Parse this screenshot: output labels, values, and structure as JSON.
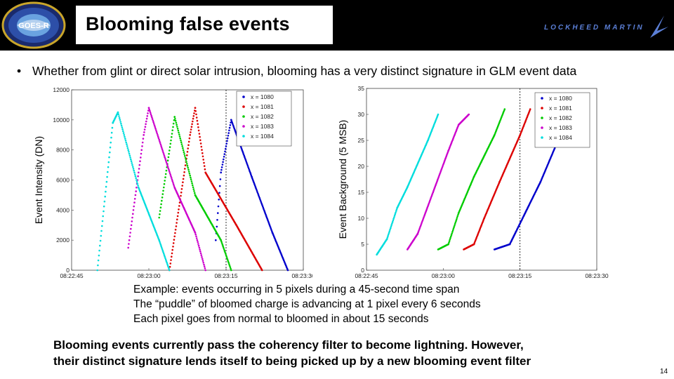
{
  "header": {
    "title": "Blooming false events",
    "left_logo_text": "GOES-R",
    "right_logo_text": "LOCKHEED MARTIN"
  },
  "bullet": {
    "symbol": "•",
    "text": "Whether from glint or direct solar intrusion, blooming has a very distinct signature in GLM event data"
  },
  "caption": {
    "lines": [
      "Example: events occurring in 5 pixels during a 45-second time span",
      "The “puddle” of bloomed charge is advancing at 1 pixel every 6 seconds",
      "Each pixel goes from normal to bloomed in about 15 seconds"
    ]
  },
  "conclusion": {
    "lines": [
      "Blooming events currently pass the coherency filter to become lightning.  However,",
      "their distinct signature lends itself to being picked up by a new blooming event filter"
    ]
  },
  "page_number": "14",
  "chart_data": [
    {
      "type": "scatter",
      "ylabel": "Event Intensity (DN)",
      "xlabel": "",
      "ylim": [
        0,
        12000
      ],
      "xlim": [
        "08:22:45",
        "08:23:30"
      ],
      "y_ticks": [
        "12000",
        "10000",
        "8000",
        "6000",
        "4000",
        "2000",
        "0"
      ],
      "x_ticks": [
        "08:22:45",
        "08:23:00",
        "08:23:15",
        "08:23:30"
      ],
      "grid": false,
      "legend_position": "top-right",
      "series": [
        {
          "name": "x = 1080",
          "color": "#0000cc",
          "rise": [
            "08:23:12",
            "08:23:14"
          ],
          "peak": [
            "08:23:16",
            10000
          ],
          "end": [
            "08:23:27",
            0
          ],
          "points": [
            [
              "08:23:13",
              2000
            ],
            [
              "08:23:14",
              6500
            ],
            [
              "08:23:16",
              10000
            ],
            [
              "08:23:20",
              6200
            ],
            [
              "08:23:24",
              2500
            ],
            [
              "08:23:27",
              0
            ]
          ]
        },
        {
          "name": "x = 1081",
          "color": "#dd0000",
          "points": [
            [
              "08:23:04",
              0
            ],
            [
              "08:23:08",
              9000
            ],
            [
              "08:23:09",
              10800
            ],
            [
              "08:23:11",
              6500
            ],
            [
              "08:23:17",
              3000
            ],
            [
              "08:23:22",
              0
            ]
          ]
        },
        {
          "name": "x = 1082",
          "color": "#00cc00",
          "points": [
            [
              "08:23:02",
              3500
            ],
            [
              "08:23:05",
              10200
            ],
            [
              "08:23:09",
              5000
            ],
            [
              "08:23:14",
              2000
            ],
            [
              "08:23:16",
              0
            ]
          ]
        },
        {
          "name": "x = 1083",
          "color": "#cc00cc",
          "points": [
            [
              "08:22:56",
              1500
            ],
            [
              "08:22:59",
              9000
            ],
            [
              "08:23:00",
              10800
            ],
            [
              "08:23:05",
              5500
            ],
            [
              "08:23:09",
              2500
            ],
            [
              "08:23:11",
              0
            ]
          ]
        },
        {
          "name": "x = 1084",
          "color": "#00dddd",
          "points": [
            [
              "08:22:50",
              0
            ],
            [
              "08:22:53",
              9800
            ],
            [
              "08:22:54",
              10500
            ],
            [
              "08:22:58",
              5500
            ],
            [
              "08:23:02",
              2000
            ],
            [
              "08:23:04",
              0
            ]
          ]
        }
      ]
    },
    {
      "type": "scatter",
      "ylabel": "Event Background (5 MSB)",
      "xlabel": "",
      "ylim": [
        0,
        35
      ],
      "xlim": [
        "08:22:45",
        "08:23:30"
      ],
      "y_ticks": [
        "35",
        "30",
        "25",
        "20",
        "15",
        "10",
        "5",
        "0"
      ],
      "x_ticks": [
        "08:22:45",
        "08:23:00",
        "08:23:15",
        "08:23:30"
      ],
      "grid": false,
      "legend_position": "top-right",
      "series": [
        {
          "name": "x = 1080",
          "color": "#0000cc",
          "points": [
            [
              "08:23:10",
              4
            ],
            [
              "08:23:13",
              5
            ],
            [
              "08:23:15",
              9
            ],
            [
              "08:23:19",
              17
            ],
            [
              "08:23:22",
              24
            ],
            [
              "08:23:23",
              27
            ]
          ]
        },
        {
          "name": "x = 1081",
          "color": "#dd0000",
          "points": [
            [
              "08:23:04",
              4
            ],
            [
              "08:23:06",
              5
            ],
            [
              "08:23:08",
              10
            ],
            [
              "08:23:11",
              17
            ],
            [
              "08:23:15",
              26
            ],
            [
              "08:23:17",
              31
            ]
          ]
        },
        {
          "name": "x = 1082",
          "color": "#00cc00",
          "points": [
            [
              "08:22:59",
              4
            ],
            [
              "08:23:01",
              5
            ],
            [
              "08:23:03",
              11
            ],
            [
              "08:23:06",
              18
            ],
            [
              "08:23:10",
              26
            ],
            [
              "08:23:12",
              31
            ]
          ]
        },
        {
          "name": "x = 1083",
          "color": "#cc00cc",
          "points": [
            [
              "08:22:53",
              4
            ],
            [
              "08:22:55",
              7
            ],
            [
              "08:22:58",
              15
            ],
            [
              "08:23:01",
              23
            ],
            [
              "08:23:03",
              28
            ],
            [
              "08:23:05",
              30
            ]
          ]
        },
        {
          "name": "x = 1084",
          "color": "#00dddd",
          "points": [
            [
              "08:22:47",
              3
            ],
            [
              "08:22:49",
              6
            ],
            [
              "08:22:51",
              12
            ],
            [
              "08:22:53",
              16
            ],
            [
              "08:22:57",
              25
            ],
            [
              "08:22:59",
              30
            ]
          ]
        }
      ]
    }
  ]
}
